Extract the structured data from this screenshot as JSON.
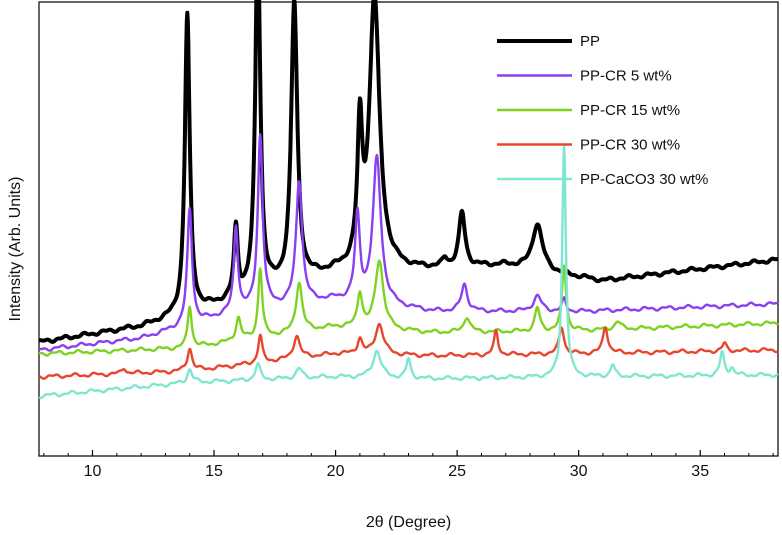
{
  "chart_data": {
    "type": "line",
    "title": "",
    "xlabel": "2θ (Degree)",
    "ylabel": "Intensity (Arb. Units)",
    "xlim": [
      7.8,
      38.2
    ],
    "ylim": [
      0,
      100
    ],
    "x_ticks": [
      10,
      15,
      20,
      25,
      30,
      35
    ],
    "y_ticks_shown": false,
    "grid": false,
    "legend_position": "top-right",
    "series": [
      {
        "name": "PP",
        "color": "#000000",
        "baseline": [
          [
            7.8,
            14.0
          ],
          [
            12,
            18.0
          ],
          [
            20,
            32.0
          ],
          [
            24,
            33.0
          ],
          [
            27,
            34.0
          ],
          [
            31,
            30.0
          ],
          [
            38.2,
            35.5
          ]
        ],
        "peaks": [
          [
            13.9,
            0.12,
            78
          ],
          [
            15.9,
            0.1,
            18
          ],
          [
            16.8,
            0.12,
            94
          ],
          [
            18.3,
            0.15,
            73
          ],
          [
            21.0,
            0.12,
            34
          ],
          [
            21.6,
            0.25,
            71
          ],
          [
            25.2,
            0.15,
            14
          ],
          [
            28.3,
            0.25,
            12
          ],
          [
            24.5,
            0.12,
            2
          ]
        ]
      },
      {
        "name": "PP-CR 5 wt%",
        "color": "#8a3ff0",
        "baseline": [
          [
            7.8,
            12.0
          ],
          [
            12,
            15.0
          ],
          [
            16,
            22.0
          ],
          [
            20,
            25.0
          ],
          [
            24,
            22.0
          ],
          [
            30,
            22.0
          ],
          [
            38.2,
            24.0
          ]
        ],
        "peaks": [
          [
            14.0,
            0.12,
            30
          ],
          [
            15.9,
            0.1,
            22
          ],
          [
            16.9,
            0.12,
            45
          ],
          [
            18.5,
            0.15,
            32
          ],
          [
            20.9,
            0.12,
            22
          ],
          [
            21.7,
            0.2,
            38
          ],
          [
            25.3,
            0.15,
            7
          ],
          [
            28.3,
            0.2,
            4
          ],
          [
            29.4,
            0.1,
            3
          ]
        ]
      },
      {
        "name": "PP-CR 15 wt%",
        "color": "#7ed321",
        "baseline": [
          [
            7.8,
            11.0
          ],
          [
            14,
            12.5
          ],
          [
            20,
            18.0
          ],
          [
            24,
            16.5
          ],
          [
            30,
            17.0
          ],
          [
            38.2,
            19.0
          ]
        ],
        "peaks": [
          [
            14.0,
            0.1,
            11
          ],
          [
            16.0,
            0.12,
            6
          ],
          [
            16.9,
            0.1,
            18
          ],
          [
            18.5,
            0.15,
            13
          ],
          [
            21.0,
            0.12,
            9
          ],
          [
            21.8,
            0.2,
            18
          ],
          [
            25.4,
            0.15,
            4
          ],
          [
            28.3,
            0.12,
            6
          ],
          [
            29.4,
            0.1,
            17
          ],
          [
            31.6,
            0.15,
            2
          ]
        ]
      },
      {
        "name": "PP-CR 30 wt%",
        "color": "#e8452c",
        "baseline": [
          [
            7.8,
            5.0
          ],
          [
            14,
            6.5
          ],
          [
            20,
            11.0
          ],
          [
            24,
            10.5
          ],
          [
            30,
            11.0
          ],
          [
            38.2,
            12.0
          ]
        ],
        "peaks": [
          [
            11.3,
            0.1,
            1.5
          ],
          [
            14.0,
            0.12,
            6
          ],
          [
            16.9,
            0.1,
            7
          ],
          [
            18.4,
            0.15,
            6
          ],
          [
            21.0,
            0.12,
            4
          ],
          [
            21.8,
            0.2,
            8
          ],
          [
            26.6,
            0.1,
            6
          ],
          [
            29.3,
            0.12,
            7
          ],
          [
            31.1,
            0.12,
            7
          ],
          [
            36.0,
            0.1,
            2
          ]
        ]
      },
      {
        "name": "PP-CaCO3 30 wt%",
        "color": "#7fe6d0",
        "baseline": [
          [
            7.8,
            0.0
          ],
          [
            14,
            3.5
          ],
          [
            20,
            5.0
          ],
          [
            24,
            4.5
          ],
          [
            30,
            5.0
          ],
          [
            38.2,
            5.5
          ]
        ],
        "peaks": [
          [
            14.0,
            0.12,
            3.5
          ],
          [
            16.8,
            0.12,
            4
          ],
          [
            18.5,
            0.15,
            2.5
          ],
          [
            21.7,
            0.2,
            7
          ],
          [
            23.0,
            0.1,
            5
          ],
          [
            29.4,
            0.09,
            60
          ],
          [
            31.4,
            0.1,
            3
          ],
          [
            35.9,
            0.1,
            6
          ],
          [
            36.3,
            0.1,
            2
          ]
        ]
      }
    ]
  }
}
